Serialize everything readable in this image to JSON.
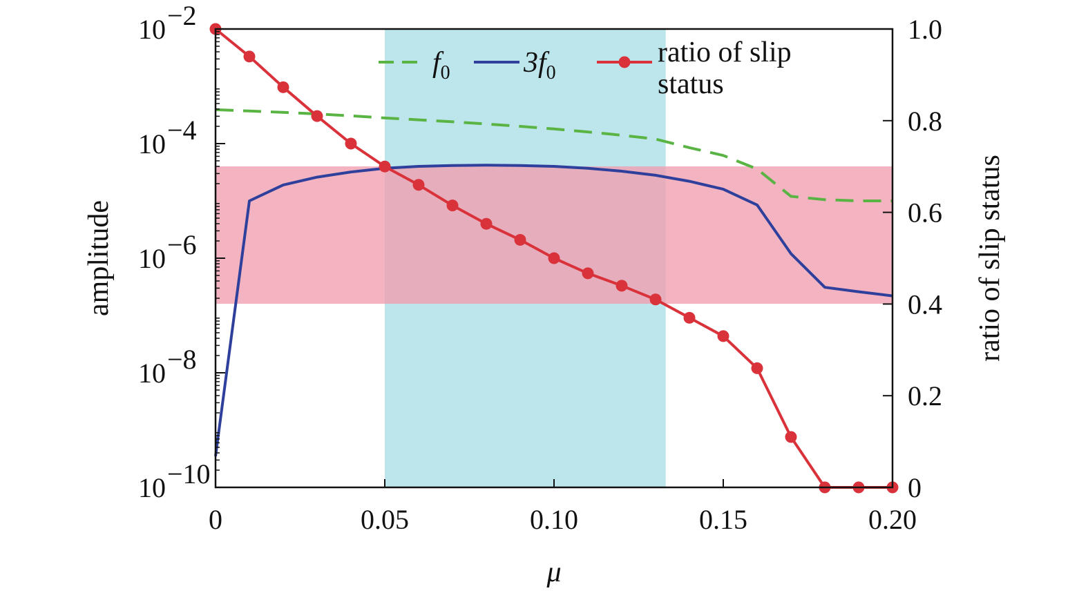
{
  "chart_data": {
    "type": "line",
    "title": "",
    "xlabel": "μ",
    "ylabel_left": "amplitude",
    "ylabel_right": "ratio of slip status",
    "xlim": [
      0,
      0.2
    ],
    "ylim_left": [
      1e-10,
      0.01
    ],
    "ylim_right": [
      0,
      1.0
    ],
    "left_scale": "log",
    "grid": false,
    "legend_position": "top-center",
    "x_ticks": [
      {
        "value": 0,
        "label": "0"
      },
      {
        "value": 0.05,
        "label": "0.05"
      },
      {
        "value": 0.1,
        "label": "0.10"
      },
      {
        "value": 0.15,
        "label": "0.15"
      },
      {
        "value": 0.2,
        "label": "0.20"
      }
    ],
    "y_left_ticks": [
      {
        "value": 1e-10,
        "base": "10",
        "exp": "−10"
      },
      {
        "value": 1e-08,
        "base": "10",
        "exp": "−8"
      },
      {
        "value": 1e-06,
        "base": "10",
        "exp": "−6"
      },
      {
        "value": 0.0001,
        "base": "10",
        "exp": "−4"
      },
      {
        "value": 0.01,
        "base": "10",
        "exp": "−2"
      }
    ],
    "y_right_ticks": [
      {
        "value": 0,
        "label": "0"
      },
      {
        "value": 0.2,
        "label": "0.2"
      },
      {
        "value": 0.4,
        "label": "0.4"
      },
      {
        "value": 0.6,
        "label": "0.6"
      },
      {
        "value": 0.8,
        "label": "0.8"
      },
      {
        "value": 1.0,
        "label": "1.0"
      }
    ],
    "shaded_regions": [
      {
        "kind": "vertical",
        "x_range": [
          0.05,
          0.133
        ],
        "color": "#bde6ec"
      },
      {
        "kind": "horizontal",
        "y_left_range": [
          1.6e-07,
          4e-05
        ],
        "color": "#f0a0b0",
        "opacity": 0.8
      }
    ],
    "series": [
      {
        "name_base": "f",
        "name_sub": "0",
        "axis": "left",
        "color": "#5ab444",
        "dash": "dashed",
        "x": [
          0,
          0.01,
          0.02,
          0.03,
          0.04,
          0.05,
          0.06,
          0.07,
          0.08,
          0.09,
          0.1,
          0.11,
          0.12,
          0.13,
          0.14,
          0.15,
          0.16,
          0.17,
          0.18,
          0.19,
          0.2
        ],
        "y": [
          0.00039,
          0.00037,
          0.00035,
          0.00033,
          0.000305,
          0.00028,
          0.00026,
          0.00024,
          0.00022,
          0.0002,
          0.00018,
          0.00016,
          0.00014,
          0.00012,
          8.5e-05,
          6.2e-05,
          3.6e-05,
          1.2e-05,
          1.05e-05,
          1e-05,
          1e-05
        ]
      },
      {
        "name_base": "3f",
        "name_sub": "0",
        "axis": "left",
        "color": "#2e3f9c",
        "dash": "solid",
        "x": [
          0,
          0.01,
          0.02,
          0.03,
          0.04,
          0.05,
          0.06,
          0.07,
          0.08,
          0.09,
          0.1,
          0.11,
          0.12,
          0.13,
          0.14,
          0.15,
          0.16,
          0.17,
          0.18,
          0.19,
          0.2
        ],
        "y": [
          3.5e-10,
          1e-05,
          1.9e-05,
          2.6e-05,
          3.2e-05,
          3.7e-05,
          4e-05,
          4.15e-05,
          4.2e-05,
          4.15e-05,
          4e-05,
          3.7e-05,
          3.3e-05,
          2.8e-05,
          2.2e-05,
          1.6e-05,
          8.5e-06,
          1.2e-06,
          3.1e-07,
          2.6e-07,
          2.2e-07
        ]
      },
      {
        "name": "ratio of slip status",
        "axis": "right",
        "color": "#d9323a",
        "dash": "solid",
        "markers": true,
        "x": [
          0,
          0.01,
          0.02,
          0.03,
          0.04,
          0.05,
          0.06,
          0.07,
          0.08,
          0.09,
          0.1,
          0.11,
          0.12,
          0.13,
          0.14,
          0.15,
          0.16,
          0.17,
          0.18,
          0.19,
          0.2
        ],
        "y": [
          1.0,
          0.94,
          0.873,
          0.81,
          0.75,
          0.7,
          0.66,
          0.615,
          0.575,
          0.54,
          0.5,
          0.467,
          0.44,
          0.41,
          0.37,
          0.33,
          0.26,
          0.11,
          0.0,
          0.0,
          0.0
        ]
      }
    ]
  }
}
